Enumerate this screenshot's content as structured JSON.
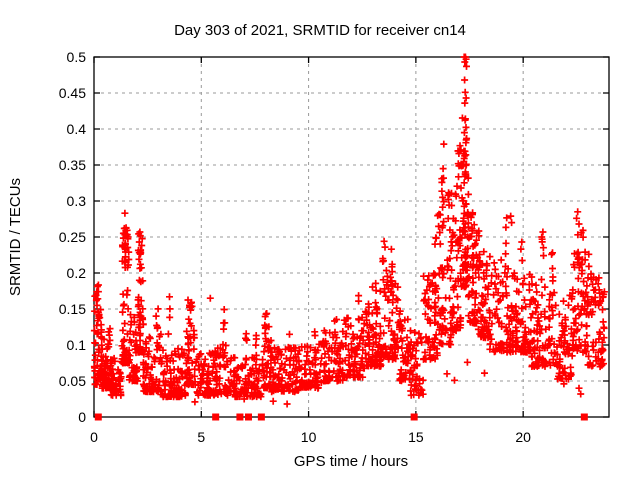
{
  "window": {
    "title": "Day 303 of 2021, SRMTID for receiver cn14"
  },
  "chart_data": {
    "type": "scatter",
    "title": "Day 303 of 2021, SRMTID for receiver cn14",
    "xlabel": "GPS time / hours",
    "ylabel": "SRMTID / TECUs",
    "xlim": [
      0,
      24
    ],
    "ylim": [
      0,
      0.5
    ],
    "xticks": [
      0,
      5,
      10,
      15,
      20
    ],
    "yticks": [
      0,
      0.05,
      0.1,
      0.15,
      0.2,
      0.25,
      0.3,
      0.35,
      0.4,
      0.45,
      0.5
    ],
    "grid": true,
    "legend": "none",
    "marker": {
      "shape": "plus",
      "color": "#ff0000",
      "size": 7
    },
    "zero_marker": {
      "shape": "filled-square",
      "color": "#ff0000",
      "size": 7
    },
    "axis_color": "#000000",
    "grid_color": "#999999",
    "background": "#ffffff",
    "seed": 1303,
    "band_segments": [
      [
        0.02,
        0.35,
        45,
        0.045,
        0.175,
        2.2
      ],
      [
        0.35,
        0.75,
        60,
        0.04,
        0.125,
        2.0
      ],
      [
        0.75,
        1.3,
        55,
        0.03,
        0.085,
        1.8
      ],
      [
        1.3,
        1.65,
        70,
        0.075,
        0.27,
        2.4
      ],
      [
        1.65,
        2.05,
        45,
        0.05,
        0.145,
        2.0
      ],
      [
        2.05,
        2.3,
        45,
        0.09,
        0.255,
        2.6
      ],
      [
        2.3,
        3.15,
        75,
        0.035,
        0.115,
        2.0
      ],
      [
        3.15,
        4.3,
        90,
        0.028,
        0.095,
        1.8
      ],
      [
        4.3,
        4.75,
        50,
        0.045,
        0.165,
        2.2
      ],
      [
        4.75,
        5.6,
        65,
        0.03,
        0.09,
        1.8
      ],
      [
        5.6,
        6.35,
        55,
        0.03,
        0.1,
        1.8
      ],
      [
        6.35,
        7.9,
        110,
        0.028,
        0.085,
        1.8
      ],
      [
        7.9,
        8.25,
        40,
        0.04,
        0.15,
        2.0
      ],
      [
        8.25,
        9.6,
        95,
        0.035,
        0.1,
        1.8
      ],
      [
        9.6,
        10.6,
        70,
        0.04,
        0.105,
        1.8
      ],
      [
        10.6,
        11.6,
        70,
        0.05,
        0.12,
        1.8
      ],
      [
        11.6,
        12.6,
        75,
        0.055,
        0.14,
        1.8
      ],
      [
        12.6,
        13.6,
        80,
        0.07,
        0.185,
        1.9
      ],
      [
        13.6,
        14.25,
        60,
        0.08,
        0.21,
        2.0
      ],
      [
        14.25,
        14.65,
        35,
        0.05,
        0.14,
        1.8
      ],
      [
        14.65,
        15.35,
        45,
        0.03,
        0.12,
        1.6
      ],
      [
        15.35,
        16.0,
        55,
        0.08,
        0.2,
        1.8
      ],
      [
        16.0,
        16.65,
        60,
        0.1,
        0.3,
        1.9
      ],
      [
        16.65,
        17.1,
        55,
        0.12,
        0.33,
        1.7
      ],
      [
        17.1,
        17.45,
        70,
        0.18,
        0.42,
        1.6
      ],
      [
        17.45,
        17.85,
        50,
        0.13,
        0.27,
        1.7
      ],
      [
        17.85,
        18.45,
        55,
        0.11,
        0.23,
        1.8
      ],
      [
        18.45,
        19.55,
        85,
        0.09,
        0.22,
        1.8
      ],
      [
        19.55,
        20.35,
        65,
        0.09,
        0.2,
        1.8
      ],
      [
        20.35,
        21.55,
        90,
        0.07,
        0.2,
        1.8
      ],
      [
        21.55,
        22.3,
        60,
        0.05,
        0.17,
        1.7
      ],
      [
        22.3,
        22.95,
        60,
        0.09,
        0.235,
        1.8
      ],
      [
        22.95,
        23.8,
        70,
        0.07,
        0.2,
        1.8
      ]
    ],
    "spike_columns": [
      [
        0.15,
        0.06,
        6,
        0.12,
        0.19
      ],
      [
        1.45,
        0.05,
        8,
        0.19,
        0.275
      ],
      [
        2.14,
        0.04,
        5,
        0.2,
        0.252
      ],
      [
        2.95,
        0.06,
        6,
        0.1,
        0.155
      ],
      [
        3.5,
        0.04,
        3,
        0.11,
        0.16
      ],
      [
        4.5,
        0.05,
        5,
        0.12,
        0.165
      ],
      [
        6.05,
        0.05,
        5,
        0.09,
        0.16
      ],
      [
        7.1,
        0.05,
        4,
        0.08,
        0.12
      ],
      [
        7.55,
        0.05,
        4,
        0.08,
        0.115
      ],
      [
        8.0,
        0.05,
        6,
        0.1,
        0.152
      ],
      [
        8.6,
        0.05,
        4,
        0.08,
        0.12
      ],
      [
        9.15,
        0.05,
        4,
        0.08,
        0.115
      ],
      [
        10.3,
        0.05,
        4,
        0.08,
        0.125
      ],
      [
        11.25,
        0.05,
        5,
        0.09,
        0.145
      ],
      [
        12.3,
        0.05,
        5,
        0.11,
        0.175
      ],
      [
        12.75,
        0.05,
        5,
        0.11,
        0.158
      ],
      [
        13.15,
        0.05,
        5,
        0.13,
        0.19
      ],
      [
        13.5,
        0.06,
        6,
        0.17,
        0.235
      ],
      [
        13.85,
        0.05,
        6,
        0.17,
        0.235
      ],
      [
        14.3,
        0.04,
        4,
        0.12,
        0.2
      ],
      [
        14.75,
        0.05,
        8,
        0.03,
        0.13
      ],
      [
        15.6,
        0.05,
        4,
        0.14,
        0.2
      ],
      [
        15.9,
        0.05,
        5,
        0.15,
        0.25
      ],
      [
        16.25,
        0.05,
        7,
        0.26,
        0.35
      ],
      [
        16.55,
        0.05,
        5,
        0.28,
        0.335
      ],
      [
        17.0,
        0.06,
        9,
        0.33,
        0.385
      ],
      [
        17.3,
        0.06,
        8,
        0.33,
        0.37
      ],
      [
        17.6,
        0.06,
        6,
        0.24,
        0.29
      ],
      [
        17.95,
        0.05,
        5,
        0.18,
        0.26
      ],
      [
        19.2,
        0.05,
        6,
        0.18,
        0.28
      ],
      [
        19.95,
        0.06,
        5,
        0.17,
        0.25
      ],
      [
        20.9,
        0.05,
        6,
        0.16,
        0.255
      ],
      [
        21.35,
        0.05,
        5,
        0.14,
        0.23
      ],
      [
        22.55,
        0.05,
        6,
        0.18,
        0.285
      ],
      [
        22.75,
        0.05,
        6,
        0.16,
        0.27
      ],
      [
        23.05,
        0.05,
        4,
        0.14,
        0.24
      ],
      [
        23.35,
        0.05,
        4,
        0.13,
        0.225
      ]
    ],
    "extra_points": [
      [
        17.25,
        0.5
      ],
      [
        17.31,
        0.5
      ],
      [
        17.28,
        0.493
      ],
      [
        17.34,
        0.497
      ],
      [
        17.36,
        0.487
      ],
      [
        17.27,
        0.468
      ],
      [
        17.3,
        0.451
      ],
      [
        17.34,
        0.443
      ],
      [
        17.28,
        0.436
      ],
      [
        17.31,
        0.414
      ],
      [
        17.26,
        0.395
      ],
      [
        17.33,
        0.381
      ],
      [
        17.29,
        0.369
      ],
      [
        17.25,
        0.359
      ],
      [
        17.35,
        0.351
      ],
      [
        16.3,
        0.379
      ],
      [
        16.27,
        0.345
      ],
      [
        16.21,
        0.331
      ],
      [
        1.44,
        0.283
      ],
      [
        1.41,
        0.262
      ],
      [
        1.48,
        0.254
      ],
      [
        1.46,
        0.241
      ],
      [
        2.14,
        0.257
      ],
      [
        2.11,
        0.243
      ],
      [
        2.17,
        0.232
      ],
      [
        19.42,
        0.279
      ],
      [
        19.46,
        0.27
      ],
      [
        22.54,
        0.285
      ],
      [
        22.49,
        0.276
      ],
      [
        22.6,
        0.268
      ],
      [
        20.92,
        0.257
      ],
      [
        20.88,
        0.247
      ],
      [
        13.52,
        0.244
      ],
      [
        13.56,
        0.236
      ],
      [
        13.86,
        0.233
      ],
      [
        15.93,
        0.249
      ],
      [
        15.89,
        0.24
      ],
      [
        5.42,
        0.165
      ],
      [
        3.52,
        0.167
      ],
      [
        0.1,
        0.169
      ],
      [
        0.14,
        0.155
      ],
      [
        0.03,
        0.147
      ],
      [
        0.02,
        0.12
      ],
      [
        0.03,
        0.103
      ],
      [
        0.02,
        0.07
      ],
      [
        0.04,
        0.064
      ],
      [
        0.03,
        0.055
      ],
      [
        4.7,
        0.021
      ],
      [
        8.35,
        0.022
      ],
      [
        9.0,
        0.018
      ],
      [
        7.0,
        0.025
      ],
      [
        14.9,
        0.031
      ],
      [
        16.45,
        0.06
      ],
      [
        16.8,
        0.051
      ],
      [
        17.4,
        0.076
      ],
      [
        18.2,
        0.061
      ],
      [
        21.9,
        0.046
      ],
      [
        22.6,
        0.04
      ],
      [
        22.68,
        0.032
      ],
      [
        23.5,
        0.09
      ]
    ],
    "zero_points": [
      0.2,
      5.67,
      6.8,
      7.2,
      7.8,
      14.92,
      22.85
    ]
  }
}
